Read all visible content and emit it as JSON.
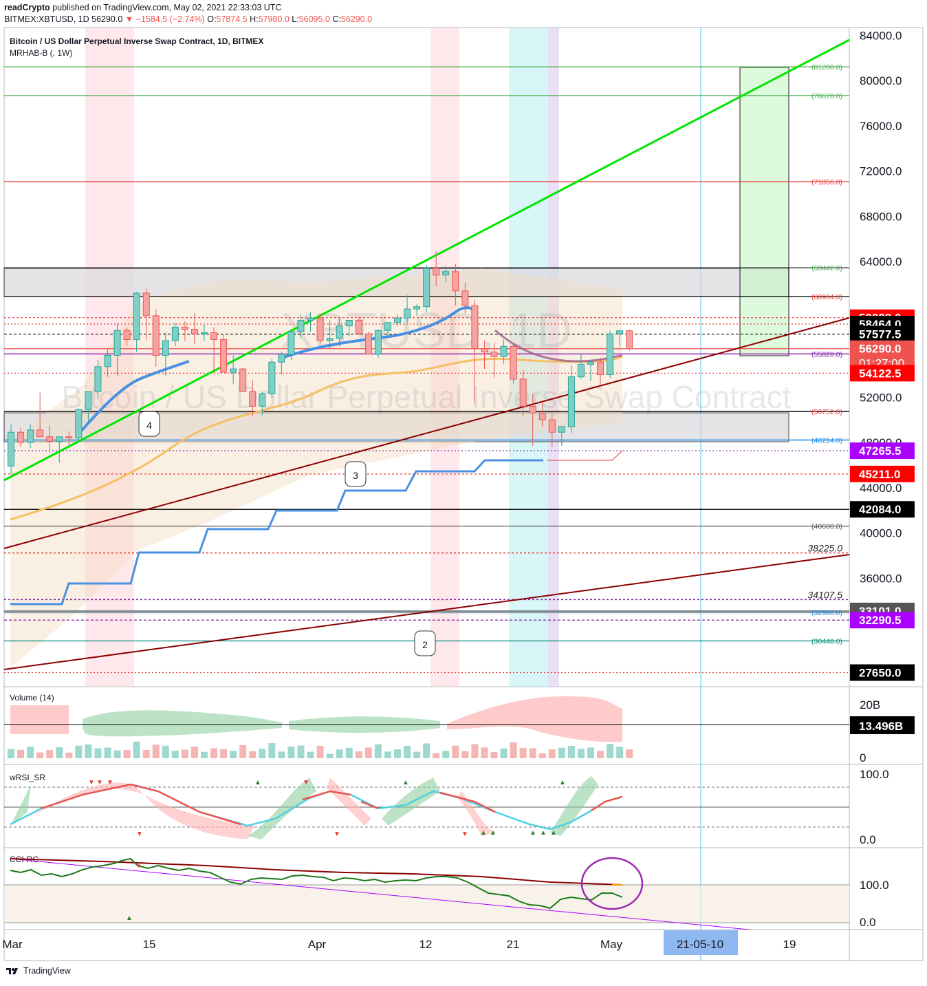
{
  "header": {
    "author": "readCrypto",
    "published": "published on TradingView.com, May 02, 2021 22:33:03 UTC",
    "ohlc_prefix": "BITMEX:XBTUSD, 1D",
    "last": "56290.0",
    "change": "−1584.5 (−2.74%)",
    "o": "57874.5",
    "h": "57980.0",
    "l": "56095.0",
    "c": "56290.0"
  },
  "chart_title": "Bitcoin / US Dollar Perpetual Inverse Swap Contract, 1D, BITMEX",
  "indicator_label": "MRHAB-B (, 1W)",
  "watermark_symbol": "XBTUSD, 1D",
  "watermark_name": "Bitcoin / US Dollar Perpetual Inverse Swap Contract",
  "footer_brand": "TradingView",
  "colors": {
    "up": "#26a69a",
    "down": "#ef5350",
    "trend_green": "#00e600",
    "trend_red": "#8b0000",
    "ema_blue": "#4a90e2",
    "ema_orange": "#f5c065"
  },
  "chart_data": {
    "type": "candlestick",
    "x_axis_labels": [
      "Mar",
      "15",
      "Apr",
      "12",
      "21",
      "May",
      "21-05-10",
      "19"
    ],
    "y_axis_labels": [
      "84000.0",
      "80000.0",
      "76000.0",
      "72000.0",
      "68000.0",
      "64000.0",
      "52000.0",
      "48000.0",
      "44000.0",
      "40000.0",
      "36000.0",
      "20B",
      "0",
      "100.0",
      "0.0",
      "100.0",
      "0.0"
    ],
    "ylim": [
      26000,
      85000
    ],
    "price_tags": [
      {
        "value": 59029.0,
        "text": "59029.0",
        "bg": "#ff0000",
        "fg": "#ffffff"
      },
      {
        "value": 58464.0,
        "text": "58464.0",
        "bg": "#000000",
        "fg": "#ffffff"
      },
      {
        "value": 57577.5,
        "text": "57577.5",
        "bg": "#000000",
        "fg": "#ffffff"
      },
      {
        "value": 56290.0,
        "text": "56290.0",
        "text2": "01:27:00",
        "bg": "#ef5350",
        "fg": "#ffffff"
      },
      {
        "value": 54122.5,
        "text": "54122.5",
        "bg": "#ff0000",
        "fg": "#ffffff"
      },
      {
        "value": 47265.5,
        "text": "47265.5",
        "bg": "#aa00ff",
        "fg": "#ffffff"
      },
      {
        "value": 45211.0,
        "text": "45211.0",
        "bg": "#ff0000",
        "fg": "#ffffff"
      },
      {
        "value": 42084.0,
        "text": "42084.0",
        "bg": "#000000",
        "fg": "#ffffff"
      },
      {
        "value": 33101.0,
        "text": "33101.0",
        "bg": "#555555",
        "fg": "#ffffff"
      },
      {
        "value": 32290.5,
        "text": "32290.5",
        "bg": "#aa00ff",
        "fg": "#ffffff"
      },
      {
        "value": 27650.0,
        "text": "27650.0",
        "bg": "#000000",
        "fg": "#ffffff"
      }
    ],
    "level_labels": [
      {
        "value": 81208.0,
        "text": "(81208.0)",
        "color": "#4caf50"
      },
      {
        "value": 78670.0,
        "text": "(78670.0)",
        "color": "#4caf50"
      },
      {
        "value": 71056.0,
        "text": "(71056.0)",
        "color": "#e53935"
      },
      {
        "value": 63442.0,
        "text": "(63442.0)",
        "color": "#4caf50"
      },
      {
        "value": 60904.0,
        "text": "(60904.0)",
        "color": "#e53935"
      },
      {
        "value": 55828.0,
        "text": "(55828.0)",
        "color": "#7b1fa2"
      },
      {
        "value": 50752.0,
        "text": "(50752.0)",
        "color": "#e53935"
      },
      {
        "value": 48214.0,
        "text": "(48214.0)",
        "color": "#1e88e5"
      },
      {
        "value": 40600.0,
        "text": "(40600.0)",
        "color": "#555555"
      },
      {
        "value": 32986.0,
        "text": "(32986.0)",
        "color": "#1e88e5"
      },
      {
        "value": 30448.0,
        "text": "(30448.0)",
        "color": "#00897b"
      },
      {
        "value": 38225.0,
        "text": "38225.0",
        "color": "#222222"
      },
      {
        "value": 34107.5,
        "text": "34107.5",
        "color": "#222222"
      }
    ],
    "candles": [
      [
        45900,
        49600,
        45200,
        48900
      ],
      [
        48900,
        49300,
        47600,
        48000
      ],
      [
        48000,
        49600,
        47500,
        49100
      ],
      [
        49100,
        52400,
        48700,
        48500
      ],
      [
        48500,
        49500,
        47100,
        48100
      ],
      [
        48100,
        48500,
        46200,
        48500
      ],
      [
        48500,
        49000,
        47700,
        48400
      ],
      [
        48400,
        51000,
        48200,
        50900
      ],
      [
        50900,
        52200,
        49900,
        52500
      ],
      [
        52500,
        55300,
        51800,
        54700
      ],
      [
        54700,
        56200,
        53800,
        55700
      ],
      [
        55700,
        58500,
        53900,
        57900
      ],
      [
        57900,
        58200,
        56500,
        57100
      ],
      [
        57100,
        61300,
        56000,
        61200
      ],
      [
        61200,
        61600,
        57000,
        59200
      ],
      [
        59200,
        59800,
        54700,
        55700
      ],
      [
        55700,
        57700,
        53900,
        57000
      ],
      [
        57000,
        58600,
        56500,
        58200
      ],
      [
        58200,
        58700,
        57000,
        58000
      ],
      [
        58000,
        59400,
        56700,
        57600
      ],
      [
        57600,
        58400,
        57000,
        57700
      ],
      [
        57700,
        58200,
        54100,
        57100
      ],
      [
        57100,
        57500,
        54300,
        54200
      ],
      [
        54200,
        55700,
        53200,
        54500
      ],
      [
        54500,
        54600,
        52700,
        52500
      ],
      [
        52500,
        53500,
        50300,
        51200
      ],
      [
        51200,
        52500,
        50400,
        52300
      ],
      [
        52300,
        55400,
        51900,
        55100
      ],
      [
        55100,
        56000,
        54000,
        55800
      ],
      [
        55800,
        57600,
        55300,
        57800
      ],
      [
        57800,
        59300,
        57200,
        58800
      ],
      [
        58800,
        59500,
        57800,
        59000
      ],
      [
        59000,
        59400,
        56800,
        57000
      ],
      [
        57000,
        58800,
        56300,
        57200
      ],
      [
        57200,
        59000,
        56500,
        58300
      ],
      [
        58300,
        58700,
        57400,
        58800
      ],
      [
        58800,
        59100,
        57500,
        57600
      ],
      [
        57600,
        57800,
        55800,
        55800
      ],
      [
        55800,
        58000,
        55500,
        57900
      ],
      [
        57900,
        58300,
        57300,
        58600
      ],
      [
        58600,
        59300,
        58300,
        59000
      ],
      [
        59000,
        61000,
        58600,
        59800
      ],
      [
        59800,
        60200,
        59200,
        60000
      ],
      [
        60000,
        63700,
        59500,
        63400
      ],
      [
        63400,
        64900,
        61800,
        62800
      ],
      [
        62800,
        63600,
        62200,
        63100
      ],
      [
        63100,
        63800,
        60100,
        61400
      ],
      [
        61400,
        62100,
        59400,
        60100
      ],
      [
        60100,
        60600,
        51500,
        56300
      ],
      [
        56300,
        57000,
        54500,
        56000
      ],
      [
        56000,
        56800,
        53700,
        55600
      ],
      [
        55600,
        57100,
        54900,
        56500
      ],
      [
        56500,
        56700,
        53200,
        53600
      ],
      [
        53600,
        54400,
        50300,
        51200
      ],
      [
        51200,
        52300,
        47700,
        50600
      ],
      [
        50600,
        51700,
        49400,
        50000
      ],
      [
        50000,
        50500,
        47600,
        48900
      ],
      [
        48900,
        49400,
        47700,
        49400
      ],
      [
        49400,
        54800,
        48800,
        53800
      ],
      [
        53800,
        55800,
        53600,
        54900
      ],
      [
        54900,
        55300,
        53400,
        55100
      ],
      [
        55100,
        55500,
        53000,
        54000
      ],
      [
        54000,
        57900,
        53700,
        57600
      ],
      [
        57600,
        57900,
        56500,
        57874
      ],
      [
        57874,
        57980,
        56095,
        56290
      ]
    ]
  },
  "panes": {
    "volume": {
      "label": "Volume (14)",
      "last": "13.496B"
    },
    "rsi": {
      "label": "wRSI_SR"
    },
    "cci": {
      "label": "CCI-RC"
    }
  }
}
